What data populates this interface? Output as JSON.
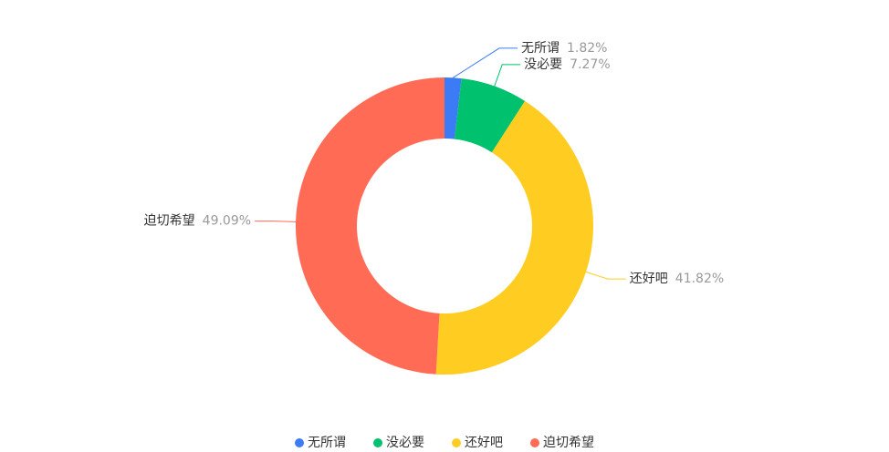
{
  "chart_data": {
    "type": "donut",
    "categories": [
      "无所谓",
      "没必要",
      "还好吧",
      "迫切希望"
    ],
    "values": [
      1.82,
      7.27,
      41.82,
      49.09
    ],
    "value_labels": [
      "1.82%",
      "7.27%",
      "41.82%",
      "49.09%"
    ],
    "colors": [
      "#3b7cf6",
      "#00c16e",
      "#ffcd22",
      "#ff6b55"
    ],
    "legend": "bottom"
  }
}
